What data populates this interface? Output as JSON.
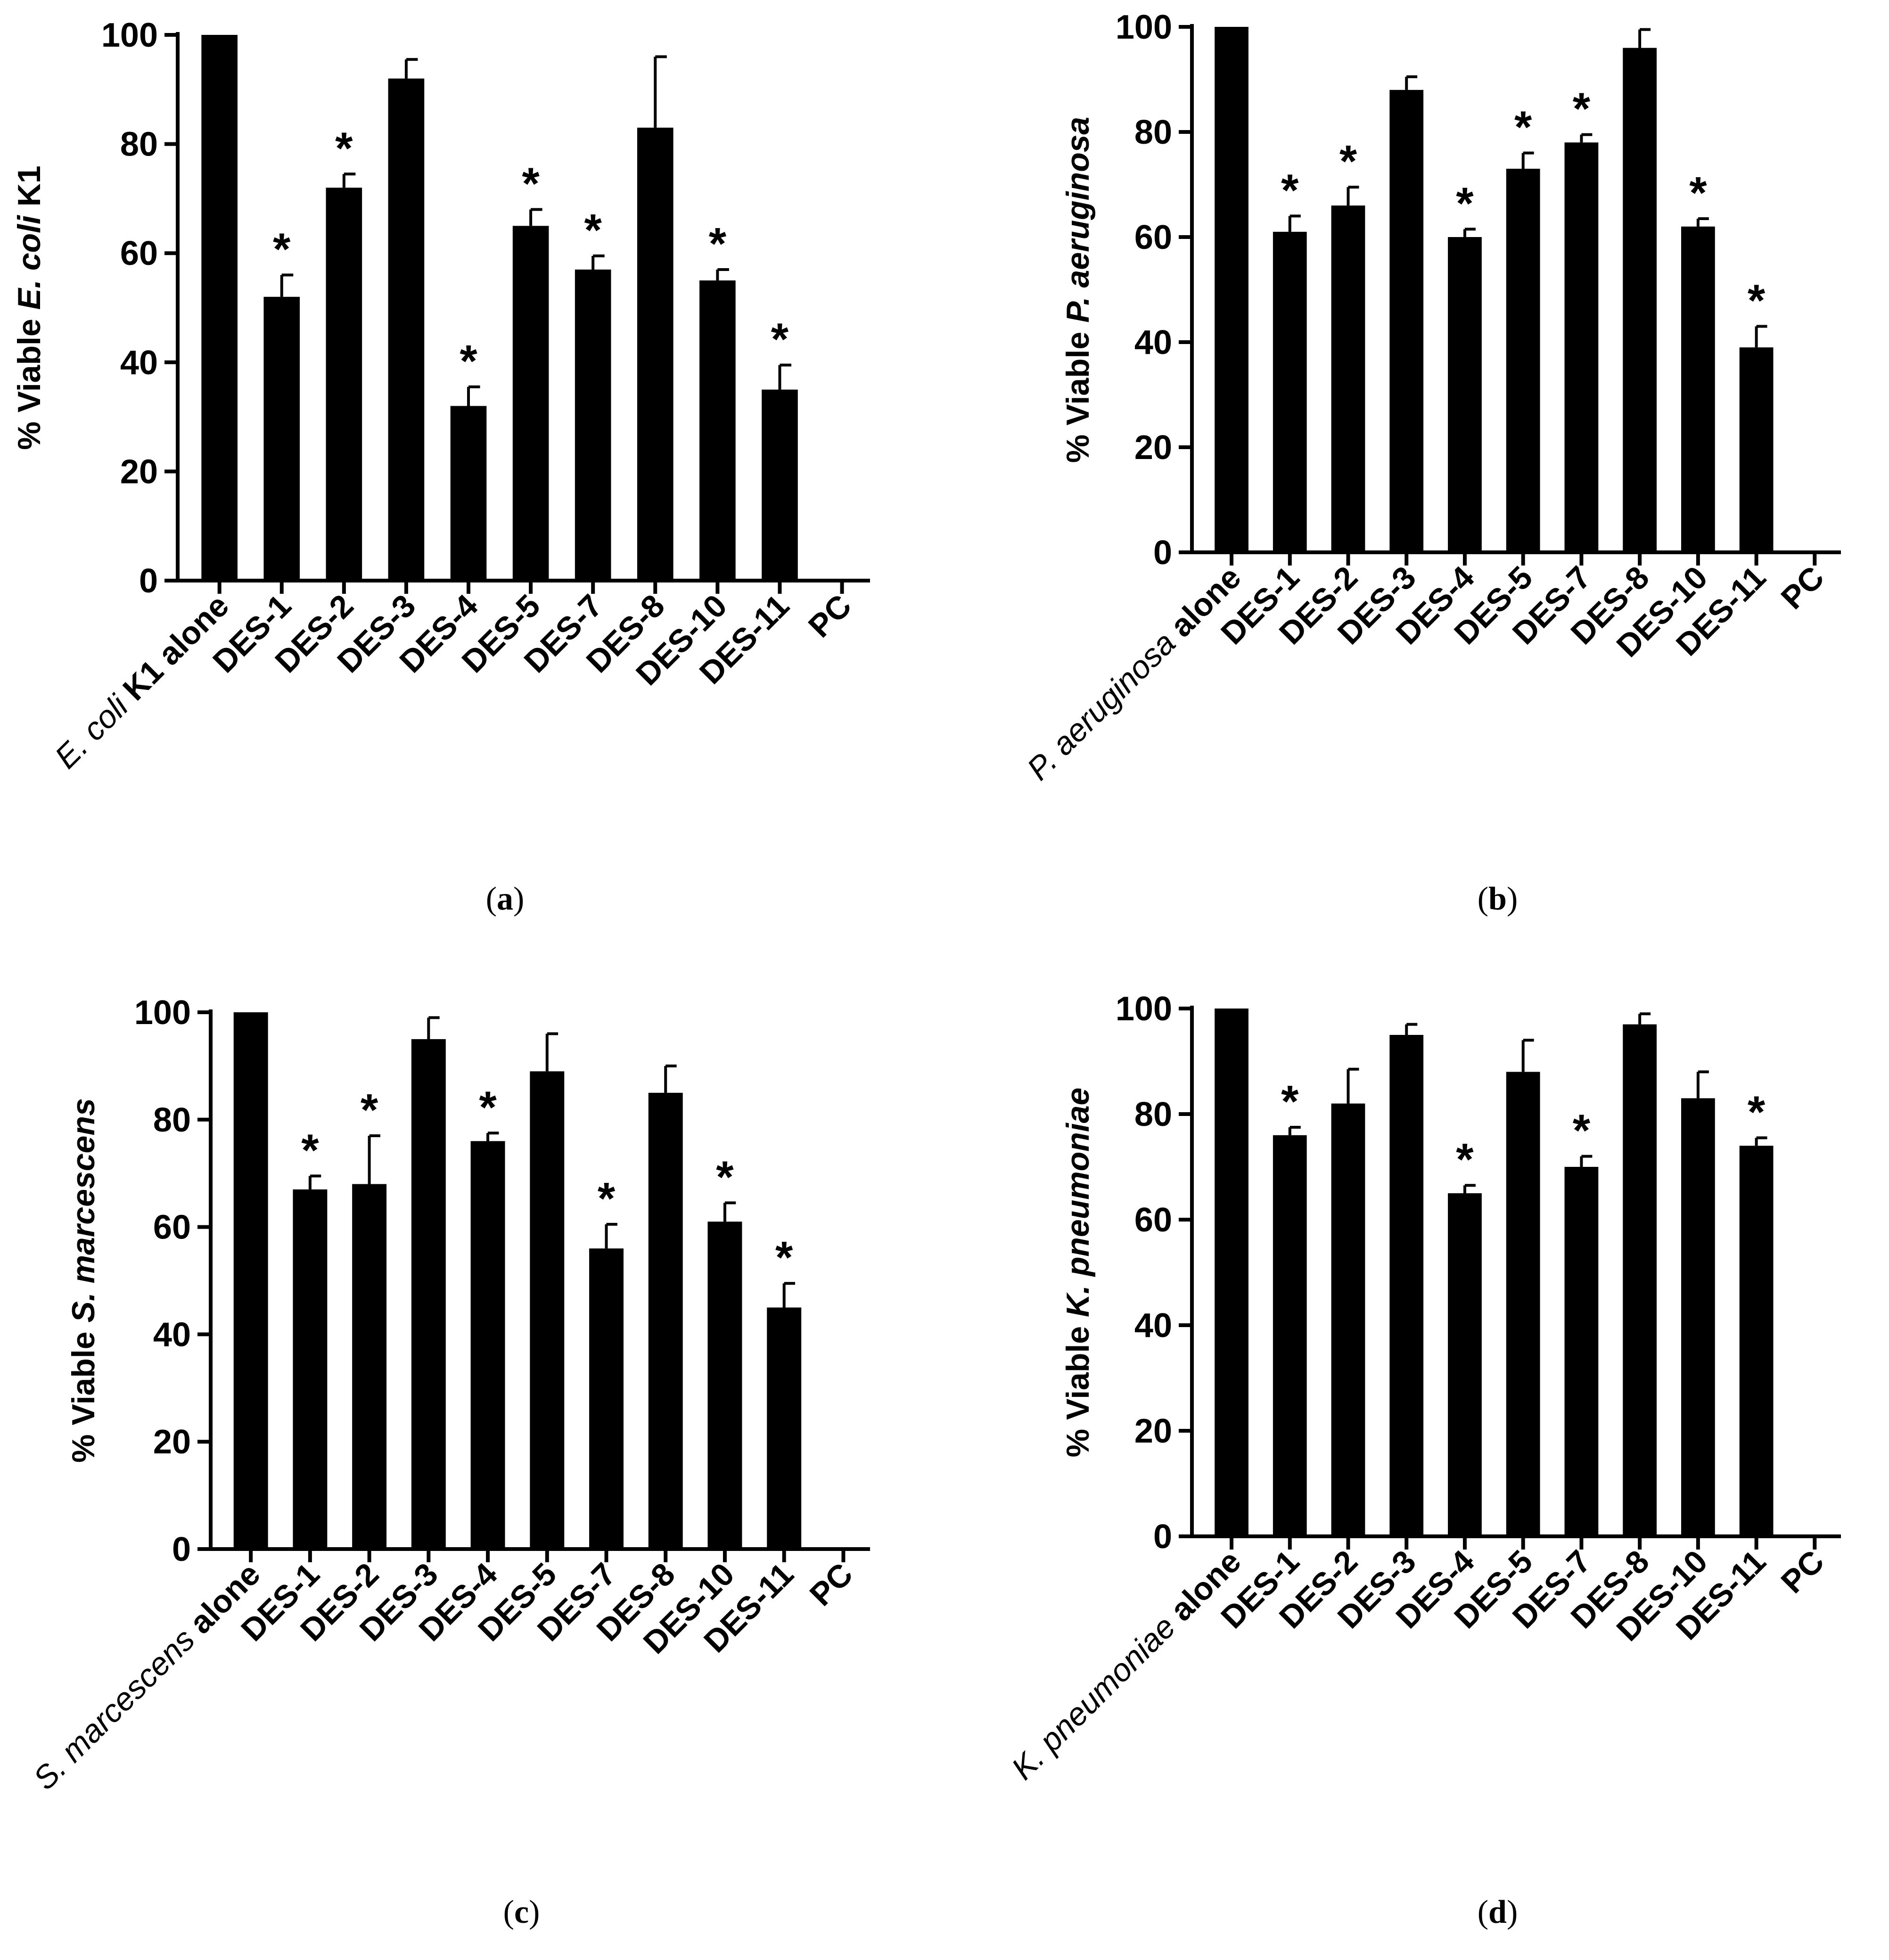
{
  "chart_data": [
    {
      "type": "bar",
      "panel_label": "(a)",
      "ylabel_prefix": "% Viable ",
      "ylabel_species": "E. coli",
      "ylabel_suffix": " K1",
      "control_species": "E. coli",
      "control_suffix": " K1 alone",
      "categories": [
        "E. coli K1 alone",
        "DES-1",
        "DES-2",
        "DES-3",
        "DES-4",
        "DES-5",
        "DES-7",
        "DES-8",
        "DES-10",
        "DES-11",
        "PC"
      ],
      "values": [
        100,
        52,
        72,
        92,
        32,
        65,
        57,
        83,
        55,
        35,
        0
      ],
      "errors": [
        0,
        4,
        2.5,
        3.5,
        3.5,
        3,
        2.5,
        13,
        2,
        4.5,
        0
      ],
      "significant": [
        false,
        true,
        true,
        false,
        true,
        true,
        true,
        false,
        true,
        true,
        false
      ],
      "marker": "*",
      "ylim": [
        0,
        100
      ],
      "yticks": [
        0,
        20,
        40,
        60,
        80,
        100
      ],
      "color": "#000000"
    },
    {
      "type": "bar",
      "panel_label": "(b)",
      "ylabel_prefix": "% Viable ",
      "ylabel_species": "P. aeruginosa",
      "ylabel_suffix": "",
      "control_species": "P. aeruginosa",
      "control_suffix": " alone",
      "categories": [
        "P. aeruginosa alone",
        "DES-1",
        "DES-2",
        "DES-3",
        "DES-4",
        "DES-5",
        "DES-7",
        "DES-8",
        "DES-10",
        "DES-11",
        "PC"
      ],
      "values": [
        100,
        61,
        66,
        88,
        60,
        73,
        78,
        96,
        62,
        39,
        0
      ],
      "errors": [
        0,
        3,
        3.5,
        2.5,
        1.5,
        3,
        1.5,
        3.5,
        1.5,
        4,
        0
      ],
      "significant": [
        false,
        true,
        true,
        false,
        true,
        true,
        true,
        false,
        true,
        true,
        false
      ],
      "marker": "*",
      "ylim": [
        0,
        100
      ],
      "yticks": [
        0,
        20,
        40,
        60,
        80,
        100
      ],
      "color": "#000000"
    },
    {
      "type": "bar",
      "panel_label": "(c)",
      "ylabel_prefix": "% Viable ",
      "ylabel_species": "S. marcescens",
      "ylabel_suffix": "",
      "control_species": "S. marcescens",
      "control_suffix": " alone",
      "categories": [
        "S. marcescens alone",
        "DES-1",
        "DES-2",
        "DES-3",
        "DES-4",
        "DES-5",
        "DES-7",
        "DES-8",
        "DES-10",
        "DES-11",
        "PC"
      ],
      "values": [
        100,
        67,
        68,
        95,
        76,
        89,
        56,
        85,
        61,
        45,
        0
      ],
      "errors": [
        0,
        2.5,
        9,
        4,
        1.5,
        7,
        4.5,
        5,
        3.5,
        4.5,
        0
      ],
      "significant": [
        false,
        true,
        true,
        false,
        true,
        false,
        true,
        false,
        true,
        true,
        false
      ],
      "marker": "*",
      "ylim": [
        0,
        100
      ],
      "yticks": [
        0,
        20,
        40,
        60,
        80,
        100
      ],
      "color": "#000000"
    },
    {
      "type": "bar",
      "panel_label": "(d)",
      "ylabel_prefix": "% Viable ",
      "ylabel_species": "K. pneumoniae",
      "ylabel_suffix": "",
      "control_species": "K. pneumoniae",
      "control_suffix": " alone",
      "categories": [
        "K. pneumoniae alone",
        "DES-1",
        "DES-2",
        "DES-3",
        "DES-4",
        "DES-5",
        "DES-7",
        "DES-8",
        "DES-10",
        "DES-11",
        "PC"
      ],
      "values": [
        100,
        76,
        82,
        95,
        65,
        88,
        70,
        97,
        83,
        74,
        0
      ],
      "errors": [
        0,
        1.5,
        6.5,
        2,
        1.5,
        6,
        2,
        2,
        5,
        1.5,
        0
      ],
      "significant": [
        false,
        true,
        false,
        false,
        true,
        false,
        true,
        false,
        false,
        true,
        false
      ],
      "marker": "*",
      "ylim": [
        0,
        100
      ],
      "yticks": [
        0,
        20,
        40,
        60,
        80,
        100
      ],
      "color": "#000000"
    }
  ]
}
